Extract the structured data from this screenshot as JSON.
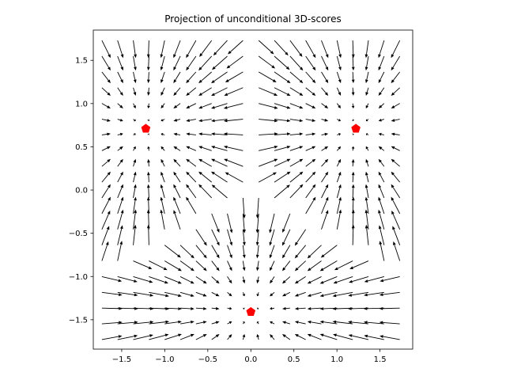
{
  "chart_data": {
    "type": "quiver",
    "title": "Projection of unconditional 3D-scores",
    "xlabel": "",
    "ylabel": "",
    "xlim": [
      -1.83,
      1.88
    ],
    "ylim": [
      -1.84,
      1.85
    ],
    "xticks": [
      -1.5,
      -1.0,
      -0.5,
      0.0,
      0.5,
      1.0,
      1.5
    ],
    "xtick_labels": [
      "−1.5",
      "−1.0",
      "−0.5",
      "0.0",
      "0.5",
      "1.0",
      "1.5"
    ],
    "yticks": [
      -1.5,
      -1.0,
      -0.5,
      0.0,
      0.5,
      1.0,
      1.5
    ],
    "ytick_labels": [
      "−1.5",
      "−1.0",
      "−0.5",
      "0.0",
      "0.5",
      "1.0",
      "1.5"
    ],
    "grid": {
      "min": -1.73,
      "max": 1.73,
      "n": 20
    },
    "field": "vectors point toward the nearest of three attractor points; magnitude grows with distance and vanishes near the attractors",
    "attractors": [
      {
        "x": -1.22,
        "y": 0.71
      },
      {
        "x": 1.22,
        "y": 0.71
      },
      {
        "x": 0.0,
        "y": -1.41
      }
    ],
    "arrow_color": "#000000",
    "marker_color": "#ff0000",
    "marker_shape": "pentagon",
    "grid_lines": false,
    "legend": false
  }
}
